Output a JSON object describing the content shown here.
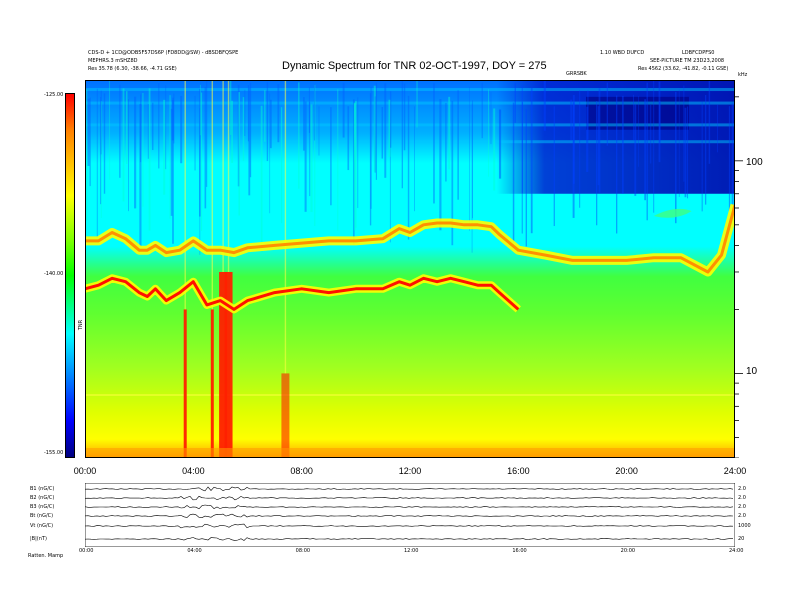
{
  "header": {
    "title": "Dynamic Spectrum for TNR 02-OCT-1997, DOY = 275",
    "left_line1": "CDS-D + 1CD@ODB5F57DS6P (FD8DD@SW) - dBSDBFQSPE",
    "left_line2": "MEPHRS.3 mSHZ8D",
    "left_line3_label": "Res",
    "left_line3_value": "35.78 (6.30, -38.66, -4.71 GSE)",
    "right_line1_a": "1.10 WBD DUFCD",
    "right_line1_b": "LDBFCDPFS0",
    "right_line2": "SEE-PICTURE  TM 23D23,2008",
    "right_line3_label": "Res",
    "right_line3_value": "4562 (33.62, -41.82, -0.11 GSE)",
    "top_axis_label": "GRRSBK",
    "unit_label": "kHz"
  },
  "colorbar": {
    "ticks": [
      "-125.00",
      "-140.00",
      "-155.00"
    ],
    "label": "TNR",
    "colors": [
      "#ff0000",
      "#ffff00",
      "#00ff00",
      "#00ffff",
      "#0000ff",
      "#00007f"
    ]
  },
  "lower_panel": {
    "row_labels": [
      "B1 (nG/C)",
      "B2 (nG/C)",
      "B3 (nG/C)",
      "Bt (nG/C)",
      "Vt (nG/C)",
      "|B|(nT)"
    ],
    "right_labels": [
      "2.0",
      "2.0",
      "2.0",
      "2.0",
      "1000",
      "20"
    ],
    "x_ticks": [
      "00:00",
      "04:00",
      "08:00",
      "12:00",
      "16:00",
      "20:00",
      "24:00"
    ],
    "footer": "Ratten. Mamp"
  },
  "chart_data": {
    "type": "heatmap",
    "title": "Dynamic Spectrum for TNR 02-OCT-1997, DOY = 275",
    "xlabel": "",
    "ylabel": "kHz",
    "x_ticks": [
      "00:00",
      "04:00",
      "08:00",
      "12:00",
      "16:00",
      "20:00",
      "24:00"
    ],
    "x_range_hours": [
      0,
      24
    ],
    "y_scale": "log",
    "y_range": [
      4,
      240
    ],
    "y_ticks": [
      10,
      100
    ],
    "colorbar_range": [
      -155.0,
      -125.0
    ],
    "colorbar_ticks": [
      -125.0,
      -140.0,
      -155.0
    ],
    "upper_emission_line": {
      "time_hours": [
        0,
        0.5,
        1,
        1.5,
        2,
        2.3,
        2.6,
        3,
        3.5,
        4,
        4.5,
        5,
        5.5,
        6,
        7,
        8,
        9,
        10,
        11,
        11.6,
        12,
        12.5,
        13,
        13.5,
        14,
        14.5,
        15,
        15.3,
        16,
        17,
        18,
        19,
        20,
        21,
        22,
        23,
        23.5,
        24
      ],
      "freq_khz": [
        42,
        42,
        46,
        43,
        38,
        38,
        40,
        37,
        38,
        42,
        38,
        38,
        37,
        39,
        40,
        41,
        42,
        42,
        43,
        48,
        46,
        50,
        51,
        51,
        50,
        50,
        49,
        45,
        38,
        36,
        34,
        34,
        34,
        35,
        35,
        30,
        36,
        62
      ]
    },
    "lower_emission_line": {
      "time_hours": [
        0,
        0.5,
        1,
        1.5,
        2,
        2.3,
        2.6,
        3,
        3.5,
        4,
        4.5,
        5,
        5.5,
        6,
        7,
        8,
        9,
        10,
        11,
        11.6,
        12,
        12.5,
        13,
        13.5,
        14,
        14.5,
        15,
        15.3,
        16
      ],
      "freq_khz": [
        25,
        26,
        28,
        27,
        24,
        23,
        25,
        22,
        24,
        27,
        21,
        22,
        20,
        22,
        24,
        25,
        24,
        25,
        25,
        27,
        26,
        28,
        27,
        28,
        27,
        26,
        26,
        24,
        20
      ]
    },
    "impulsive_bursts_hours": [
      3.7,
      4.7,
      5.1,
      5.3,
      7.4
    ]
  }
}
